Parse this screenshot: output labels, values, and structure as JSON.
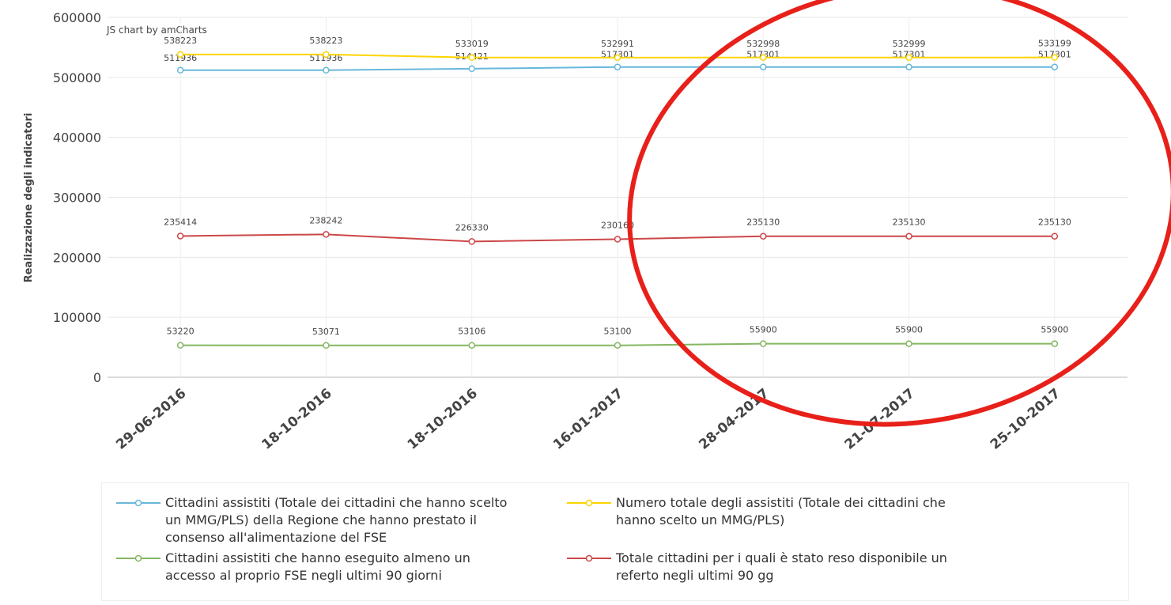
{
  "chart_data": {
    "type": "line",
    "credit": "JS chart by amCharts",
    "y_label": "Realizzazione degli indicatori",
    "categories": [
      "29-06-2016",
      "18-10-2016",
      "18-10-2016",
      "16-01-2017",
      "28-04-2017",
      "21-07-2017",
      "25-10-2017"
    ],
    "series": [
      {
        "name": "Cittadini assistiti (Totale dei cittadini che hanno scelto un MMG/PLS) della Regione che hanno prestato il consenso all'alimentazione del FSE",
        "color": "#67b7dc",
        "values": [
          511936,
          511936,
          514421,
          517301,
          517301,
          517301,
          517301
        ]
      },
      {
        "name": "Numero totale degli assistiti (Totale dei cittadini che hanno scelto un MMG/PLS)",
        "color": "#fdd400",
        "values": [
          538223,
          538223,
          533019,
          532991,
          532998,
          532999,
          533199
        ]
      },
      {
        "name": "Cittadini assistiti che hanno eseguito almeno un accesso al proprio FSE negli ultimi 90 giorni",
        "color": "#84b761",
        "values": [
          53220,
          53071,
          53106,
          53100,
          55900,
          55900,
          55900
        ]
      },
      {
        "name": "Totale cittadini per i quali è stato reso disponibile un referto negli ultimi 90 gg",
        "color": "#cc4748",
        "values": [
          235414,
          238242,
          226330,
          230160,
          235130,
          235130,
          235130
        ]
      }
    ],
    "ylim": [
      0,
      600000
    ],
    "yticks": [
      0,
      100000,
      200000,
      300000,
      400000,
      500000,
      600000
    ],
    "grid": true
  }
}
